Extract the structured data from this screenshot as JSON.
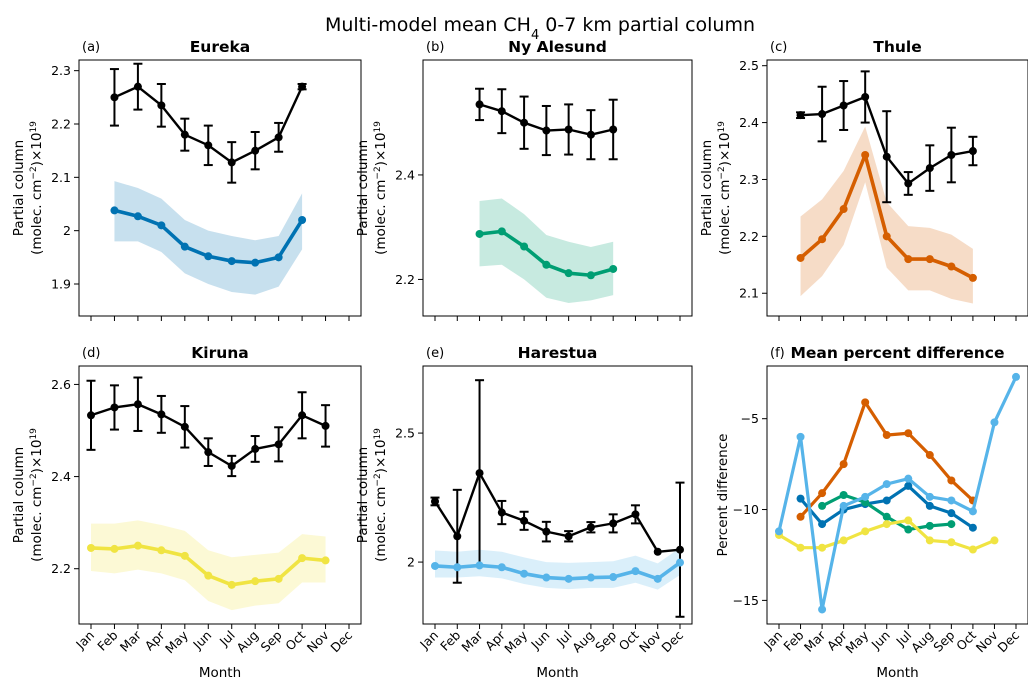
{
  "figure": {
    "suptitle_prefix": "Multi-model mean CH",
    "suptitle_sub": "4",
    "suptitle_suffix": " 0-7 km partial column",
    "ylabel_line1": "Partial column",
    "ylabel_line2": "(molec. cm",
    "ylabel_exp": "−2",
    "ylabel_mid": ")×10",
    "ylabel_exp2": "19",
    "colors": {
      "obs": "#000000",
      "eureka": "#0072b2",
      "ny_alesund": "#009e73",
      "thule": "#d55e00",
      "kiruna": "#f0e442",
      "harestua": "#56b4e9"
    }
  },
  "chart_data": [
    {
      "type": "line",
      "panel": "(a)",
      "title": "Eureka",
      "xlabel": "",
      "ylabel": "Partial column (molec. cm−2)×10^19",
      "categories": [
        "Jan",
        "Feb",
        "Mar",
        "Apr",
        "May",
        "Jun",
        "Jul",
        "Aug",
        "Sep",
        "Oct",
        "Nov",
        "Dec"
      ],
      "ylim": [
        1.84,
        2.32
      ],
      "yticks": [
        1.9,
        2.0,
        2.1,
        2.2,
        2.3
      ],
      "color": "#0072b2",
      "obs": [
        null,
        2.25,
        2.27,
        2.235,
        2.18,
        2.16,
        2.128,
        2.15,
        2.175,
        2.27,
        null,
        null
      ],
      "obs_err": [
        null,
        0.053,
        0.043,
        0.04,
        0.03,
        0.037,
        0.038,
        0.035,
        0.027,
        0.005,
        null,
        null
      ],
      "model": [
        null,
        2.038,
        2.027,
        2.01,
        1.97,
        1.952,
        1.943,
        1.94,
        1.95,
        2.02,
        null,
        null
      ],
      "model_lo": [
        null,
        1.98,
        1.98,
        1.96,
        1.92,
        1.9,
        1.885,
        1.88,
        1.895,
        1.965,
        null,
        null
      ],
      "model_hi": [
        null,
        2.093,
        2.08,
        2.06,
        2.02,
        2.0,
        1.99,
        1.982,
        1.99,
        2.07,
        null,
        null
      ]
    },
    {
      "type": "line",
      "panel": "(b)",
      "title": "Ny Alesund",
      "xlabel": "",
      "ylabel": "Partial column (molec. cm−2)×10^19",
      "categories": [
        "Jan",
        "Feb",
        "Mar",
        "Apr",
        "May",
        "Jun",
        "Jul",
        "Aug",
        "Sep",
        "Oct",
        "Nov",
        "Dec"
      ],
      "ylim": [
        2.13,
        2.62
      ],
      "yticks": [
        2.2,
        2.4
      ],
      "color": "#009e73",
      "obs": [
        null,
        null,
        2.535,
        2.522,
        2.5,
        2.485,
        2.487,
        2.477,
        2.487,
        null,
        null,
        null
      ],
      "obs_err": [
        null,
        null,
        0.03,
        0.042,
        0.05,
        0.047,
        0.048,
        0.047,
        0.057,
        null,
        null,
        null
      ],
      "model": [
        null,
        null,
        2.287,
        2.292,
        2.263,
        2.228,
        2.212,
        2.208,
        2.22,
        null,
        null,
        null
      ],
      "model_lo": [
        null,
        null,
        2.225,
        2.228,
        2.2,
        2.165,
        2.155,
        2.16,
        2.17,
        null,
        null,
        null
      ],
      "model_hi": [
        null,
        null,
        2.35,
        2.355,
        2.325,
        2.285,
        2.272,
        2.262,
        2.272,
        null,
        null,
        null
      ]
    },
    {
      "type": "line",
      "panel": "(c)",
      "title": "Thule",
      "xlabel": "",
      "ylabel": "Partial column (molec. cm−2)×10^19",
      "categories": [
        "Jan",
        "Feb",
        "Mar",
        "Apr",
        "May",
        "Jun",
        "Jul",
        "Aug",
        "Sep",
        "Oct",
        "Nov",
        "Dec"
      ],
      "ylim": [
        2.06,
        2.51
      ],
      "yticks": [
        2.1,
        2.2,
        2.3,
        2.4,
        2.5
      ],
      "color": "#d55e00",
      "obs": [
        null,
        2.413,
        2.415,
        2.43,
        2.445,
        2.34,
        2.293,
        2.32,
        2.343,
        2.35,
        null,
        null
      ],
      "obs_err": [
        null,
        0.005,
        0.048,
        0.043,
        0.045,
        0.08,
        0.02,
        0.04,
        0.048,
        0.025,
        null,
        null
      ],
      "model": [
        null,
        2.162,
        2.195,
        2.248,
        2.343,
        2.2,
        2.16,
        2.16,
        2.147,
        2.127,
        null,
        null
      ],
      "model_lo": [
        null,
        2.095,
        2.13,
        2.185,
        2.295,
        2.145,
        2.105,
        2.105,
        2.09,
        2.082,
        null,
        null
      ],
      "model_hi": [
        null,
        2.235,
        2.265,
        2.315,
        2.393,
        2.26,
        2.218,
        2.215,
        2.203,
        2.178,
        null,
        null
      ]
    },
    {
      "type": "line",
      "panel": "(d)",
      "title": "Kiruna",
      "xlabel": "Month",
      "ylabel": "Partial column (molec. cm−2)×10^19",
      "categories": [
        "Jan",
        "Feb",
        "Mar",
        "Apr",
        "May",
        "Jun",
        "Jul",
        "Aug",
        "Sep",
        "Oct",
        "Nov",
        "Dec"
      ],
      "ylim": [
        2.08,
        2.64
      ],
      "yticks": [
        2.2,
        2.4,
        2.6
      ],
      "color": "#f0e442",
      "obs": [
        2.533,
        2.55,
        2.557,
        2.535,
        2.508,
        2.453,
        2.423,
        2.46,
        2.47,
        2.533,
        2.51,
        null
      ],
      "obs_err": [
        0.075,
        0.048,
        0.058,
        0.04,
        0.045,
        0.03,
        0.022,
        0.028,
        0.037,
        0.05,
        0.045,
        null
      ],
      "model": [
        2.245,
        2.243,
        2.25,
        2.24,
        2.228,
        2.185,
        2.165,
        2.173,
        2.178,
        2.223,
        2.218,
        null
      ],
      "model_lo": [
        2.195,
        2.19,
        2.198,
        2.19,
        2.175,
        2.13,
        2.11,
        2.12,
        2.125,
        2.17,
        2.17,
        null
      ],
      "model_hi": [
        2.298,
        2.298,
        2.305,
        2.295,
        2.282,
        2.24,
        2.225,
        2.23,
        2.235,
        2.275,
        2.27,
        null
      ]
    },
    {
      "type": "line",
      "panel": "(e)",
      "title": "Harestua",
      "xlabel": "Month",
      "ylabel": "Partial column (molec. cm−2)×10^19",
      "categories": [
        "Jan",
        "Feb",
        "Mar",
        "Apr",
        "May",
        "Jun",
        "Jul",
        "Aug",
        "Sep",
        "Oct",
        "Nov",
        "Dec"
      ],
      "ylim": [
        1.76,
        2.76
      ],
      "yticks": [
        2.0,
        2.5
      ],
      "color": "#56b4e9",
      "obs": [
        2.235,
        2.1,
        2.345,
        2.192,
        2.16,
        2.118,
        2.1,
        2.135,
        2.15,
        2.185,
        2.04,
        2.048
      ],
      "obs_err": [
        0.015,
        0.18,
        0.36,
        0.045,
        0.035,
        0.038,
        0.02,
        0.02,
        0.035,
        0.035,
        0.0,
        0.26
      ],
      "model": [
        1.985,
        1.98,
        1.987,
        1.98,
        1.955,
        1.94,
        1.935,
        1.94,
        1.942,
        1.965,
        1.935,
        1.998
      ],
      "model_lo": [
        1.94,
        1.94,
        1.945,
        1.937,
        1.915,
        1.9,
        1.895,
        1.9,
        1.9,
        1.92,
        1.893,
        1.95
      ],
      "model_hi": [
        2.045,
        2.04,
        2.048,
        2.04,
        2.018,
        2.0,
        1.997,
        2.0,
        2.003,
        2.025,
        1.995,
        2.055
      ]
    },
    {
      "type": "line",
      "panel": "(f)",
      "title": "Mean percent difference",
      "xlabel": "Month",
      "ylabel": "Percent difference",
      "categories": [
        "Jan",
        "Feb",
        "Mar",
        "Apr",
        "May",
        "Jun",
        "Jul",
        "Aug",
        "Sep",
        "Oct",
        "Nov",
        "Dec"
      ],
      "ylim": [
        -16.3,
        -2.1
      ],
      "yticks": [
        -15,
        -10,
        -5
      ],
      "series": [
        {
          "color": "#0072b2",
          "values": [
            null,
            -9.4,
            -10.8,
            -10.0,
            -9.7,
            -9.5,
            -8.7,
            -9.8,
            -10.2,
            -11.0,
            null,
            null
          ]
        },
        {
          "color": "#009e73",
          "values": [
            null,
            null,
            -9.8,
            -9.2,
            -9.6,
            -10.4,
            -11.1,
            -10.9,
            -10.8,
            null,
            null,
            null
          ]
        },
        {
          "color": "#d55e00",
          "values": [
            null,
            -10.4,
            -9.1,
            -7.5,
            -4.1,
            -5.9,
            -5.8,
            -7.0,
            -8.4,
            -9.5,
            null,
            null
          ]
        },
        {
          "color": "#f0e442",
          "values": [
            -11.4,
            -12.1,
            -12.1,
            -11.7,
            -11.2,
            -10.8,
            -10.6,
            -11.7,
            -11.8,
            -12.2,
            -11.7,
            null
          ]
        },
        {
          "color": "#56b4e9",
          "values": [
            -11.2,
            -6.0,
            -15.5,
            -9.8,
            -9.3,
            -8.6,
            -8.3,
            -9.3,
            -9.5,
            -10.1,
            -5.2,
            -2.7
          ]
        }
      ]
    }
  ]
}
